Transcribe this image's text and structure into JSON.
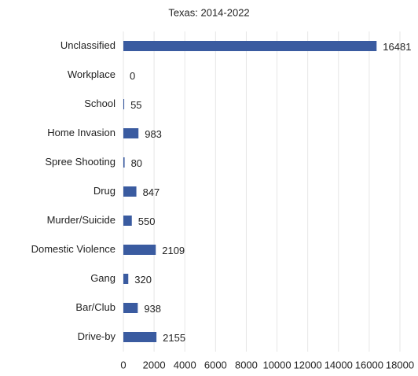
{
  "chart_data": {
    "type": "bar",
    "orientation": "horizontal",
    "title": "Texas: 2014-2022",
    "categories": [
      "Unclassified",
      "Workplace",
      "School",
      "Home Invasion",
      "Spree Shooting",
      "Drug",
      "Murder/Suicide",
      "Domestic Violence",
      "Gang",
      "Bar/Club",
      "Drive-by"
    ],
    "values": [
      16481,
      0,
      55,
      983,
      80,
      847,
      550,
      2109,
      320,
      938,
      2155
    ],
    "color": "#3a5ba0",
    "xlim": [
      0,
      18000
    ],
    "xticks": [
      0,
      2000,
      4000,
      6000,
      8000,
      10000,
      12000,
      14000,
      16000,
      18000
    ],
    "grid": true
  }
}
